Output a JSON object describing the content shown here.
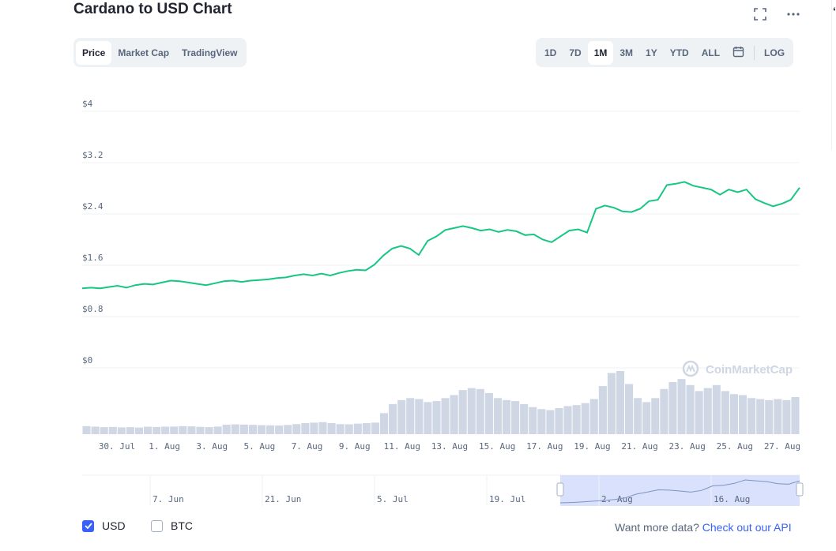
{
  "header": {
    "title": "Cardano to USD Chart",
    "expand_icon": "expand-icon",
    "more_icon": "more-icon"
  },
  "tabs_left": [
    "Price",
    "Market Cap",
    "TradingView"
  ],
  "tabs_left_active": "Price",
  "tabs_right": [
    "1D",
    "7D",
    "1M",
    "3M",
    "1Y",
    "YTD",
    "ALL"
  ],
  "tabs_right_active": "1M",
  "calendar_icon": "calendar-icon",
  "log_label": "LOG",
  "watermark": "CoinMarketCap",
  "footer": {
    "usd_label": "USD",
    "usd_checked": true,
    "btc_label": "BTC",
    "btc_checked": false,
    "more_text": "Want more data?",
    "api_link": "Check out our API"
  },
  "colors": {
    "price_line": "#16c784",
    "volume": "#cfd6e4",
    "accent": "#3861fb",
    "navigator_fill": "#c9d4fb"
  },
  "chart_data": {
    "type": "line",
    "ylim": [
      0,
      4
    ],
    "yticks": [
      "$4",
      "$3.2",
      "$2.4",
      "$1.6",
      "$0.8",
      "$0"
    ],
    "xticks": [
      "30. Jul",
      "1. Aug",
      "3. Aug",
      "5. Aug",
      "7. Aug",
      "9. Aug",
      "11. Aug",
      "13. Aug",
      "15. Aug",
      "17. Aug",
      "19. Aug",
      "21. Aug",
      "23. Aug",
      "25. Aug",
      "27. Aug"
    ],
    "series": [
      {
        "values": [
          1.24,
          1.25,
          1.24,
          1.26,
          1.28,
          1.25,
          1.29,
          1.31,
          1.3,
          1.33,
          1.36,
          1.35,
          1.33,
          1.31,
          1.29,
          1.32,
          1.35,
          1.36,
          1.34,
          1.36,
          1.37,
          1.38,
          1.4,
          1.41,
          1.44,
          1.46,
          1.44,
          1.47,
          1.44,
          1.48,
          1.51,
          1.53,
          1.52,
          1.61,
          1.75,
          1.86,
          1.9,
          1.86,
          1.76,
          1.98,
          2.05,
          2.15,
          2.18,
          2.21,
          2.18,
          2.14,
          2.16,
          2.12,
          2.15,
          2.13,
          2.07,
          2.08,
          2.0,
          1.96,
          2.05,
          2.14,
          2.16,
          2.11,
          2.48,
          2.53,
          2.5,
          2.44,
          2.43,
          2.48,
          2.6,
          2.62,
          2.85,
          2.87,
          2.9,
          2.84,
          2.81,
          2.78,
          2.7,
          2.78,
          2.74,
          2.78,
          2.63,
          2.57,
          2.52,
          2.56,
          2.62,
          2.81
        ]
      }
    ],
    "volume": [
      0.8,
      0.75,
      0.7,
      0.72,
      0.68,
      0.7,
      0.66,
      0.74,
      0.72,
      0.75,
      0.76,
      0.8,
      0.78,
      0.73,
      0.7,
      0.76,
      0.94,
      0.98,
      0.96,
      0.93,
      0.9,
      0.88,
      0.86,
      0.92,
      1.0,
      1.1,
      1.15,
      1.2,
      1.1,
      1.0,
      0.98,
      1.05,
      1.1,
      1.15,
      2.1,
      3.0,
      3.4,
      3.6,
      3.5,
      3.2,
      3.3,
      3.6,
      3.9,
      4.4,
      4.6,
      4.5,
      4.1,
      3.6,
      3.4,
      3.3,
      3.0,
      2.7,
      2.5,
      2.4,
      2.6,
      2.8,
      2.9,
      3.1,
      3.5,
      4.8,
      6.1,
      6.3,
      5.0,
      3.6,
      3.2,
      3.6,
      4.5,
      5.2,
      5.5,
      4.9,
      4.3,
      4.6,
      4.9,
      4.3,
      4.0,
      3.9,
      3.6,
      3.5,
      3.4,
      3.5,
      3.4,
      3.7
    ],
    "navigator": {
      "labels": [
        "7. Jun",
        "21. Jun",
        "5. Jul",
        "19. Jul",
        "2. Aug",
        "16. Aug"
      ],
      "values": [
        1.24,
        1.26,
        1.3,
        1.36,
        1.4,
        1.48,
        1.6,
        1.86,
        2.0,
        2.16,
        2.14,
        2.08,
        2.0,
        2.12,
        2.44,
        2.48,
        2.62,
        2.86,
        2.8,
        2.74,
        2.6,
        2.56,
        2.8
      ]
    }
  }
}
